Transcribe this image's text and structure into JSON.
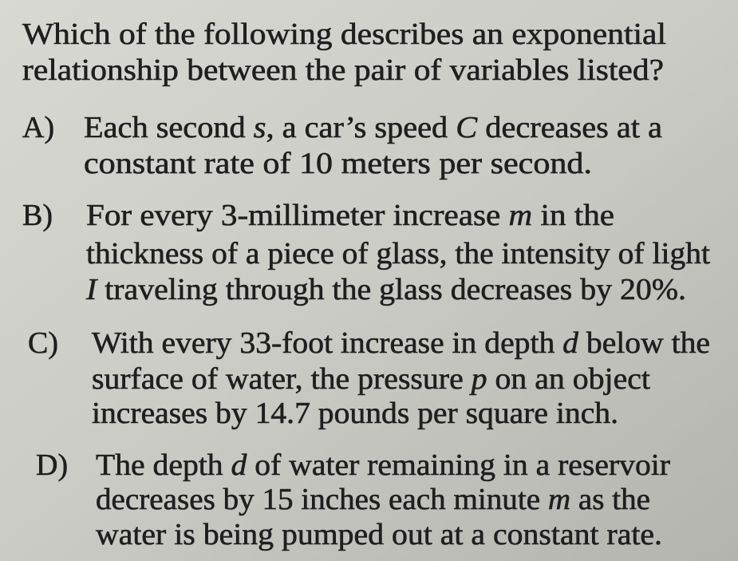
{
  "question": {
    "lines": [
      [
        "Which of the following describes an exponential"
      ],
      [
        "relationship between the pair of variables listed?"
      ]
    ]
  },
  "options": [
    {
      "label": "A)",
      "lines": [
        [
          "Each second ",
          {
            "italic": "s"
          },
          ", a car’s speed ",
          {
            "italic": "C"
          },
          " decreases at a"
        ],
        [
          "constant rate of 10 meters per second."
        ]
      ]
    },
    {
      "label": "B)",
      "lines": [
        [
          "For every 3-millimeter increase ",
          {
            "italic": "m"
          },
          " in the"
        ],
        [
          "thickness of a piece of glass, the intensity of light"
        ],
        [
          {
            "italic": "I"
          },
          " traveling through the glass decreases by 20%."
        ]
      ]
    },
    {
      "label": "C)",
      "lines": [
        [
          "With every 33-foot increase in depth ",
          {
            "italic": "d"
          },
          " below the"
        ],
        [
          "surface of water, the pressure ",
          {
            "italic": "p"
          },
          " on an object"
        ],
        [
          "increases by 14.7 pounds per square inch."
        ]
      ]
    },
    {
      "label": "D)",
      "lines": [
        [
          "The depth ",
          {
            "italic": "d"
          },
          " of water remaining in a reservoir"
        ],
        [
          "decreases by 15 inches each minute ",
          {
            "italic": "m"
          },
          " as the"
        ],
        [
          "water is being pumped out at a constant rate."
        ]
      ]
    }
  ]
}
